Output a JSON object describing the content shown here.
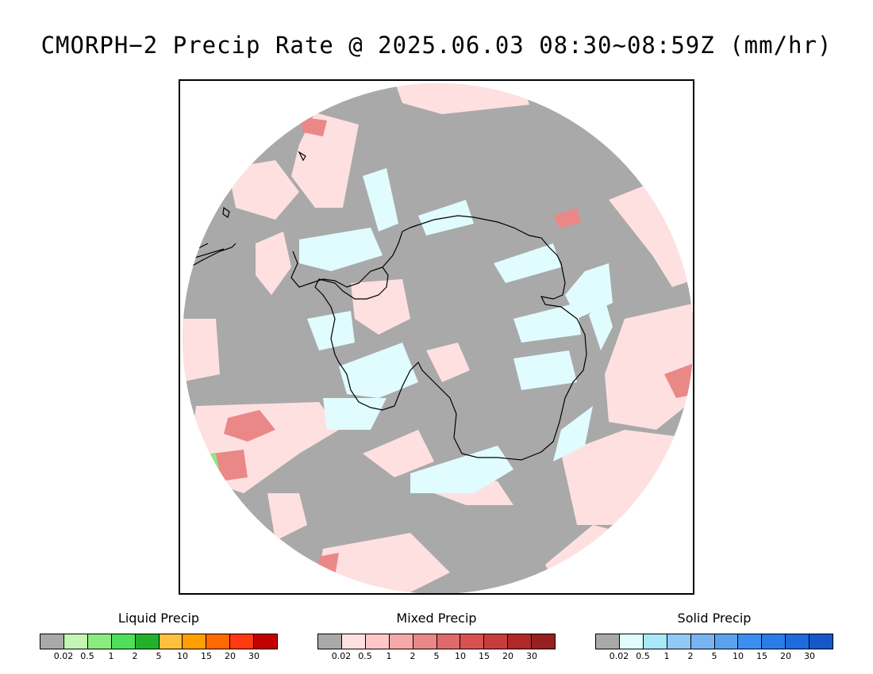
{
  "title": "CMORPH−2 Precip Rate @ 2025.06.03 08:30~08:59Z (mm/hr)",
  "legends": [
    {
      "name": "Liquid Precip",
      "colors": [
        "#a9a9a9",
        "#c4f5b4",
        "#8aeb7e",
        "#4ee05a",
        "#22b22a",
        "#ffbf3f",
        "#ff9f00",
        "#ff6a00",
        "#ff3a10",
        "#c40000"
      ],
      "ticks": [
        "0.02",
        "0.5",
        "1",
        "2",
        "5",
        "10",
        "15",
        "20",
        "30"
      ]
    },
    {
      "name": "Mixed Precip",
      "colors": [
        "#a9a9a9",
        "#ffe0e0",
        "#ffc8c8",
        "#f4a8a8",
        "#ea8888",
        "#e06a6a",
        "#d85252",
        "#c83c3c",
        "#b02828",
        "#962020"
      ],
      "ticks": [
        "0.02",
        "0.5",
        "1",
        "2",
        "5",
        "10",
        "15",
        "20",
        "30"
      ]
    },
    {
      "name": "Solid Precip",
      "colors": [
        "#a9a9a9",
        "#e0fcff",
        "#a8e8f8",
        "#92c8f4",
        "#78b4f0",
        "#5aa2ee",
        "#3c8ef0",
        "#2a7ce8",
        "#1e6ade",
        "#1658c8"
      ],
      "ticks": [
        "0.02",
        "0.5",
        "1",
        "2",
        "5",
        "10",
        "15",
        "20",
        "30"
      ]
    }
  ],
  "map_colors": {
    "background": "#a9a9a9",
    "mixed_light": "#ffe0e0",
    "mixed_mid": "#ea8888",
    "solid_light": "#e0fcff",
    "liquid_light": "#8aeb7e",
    "coast": "#000000"
  }
}
